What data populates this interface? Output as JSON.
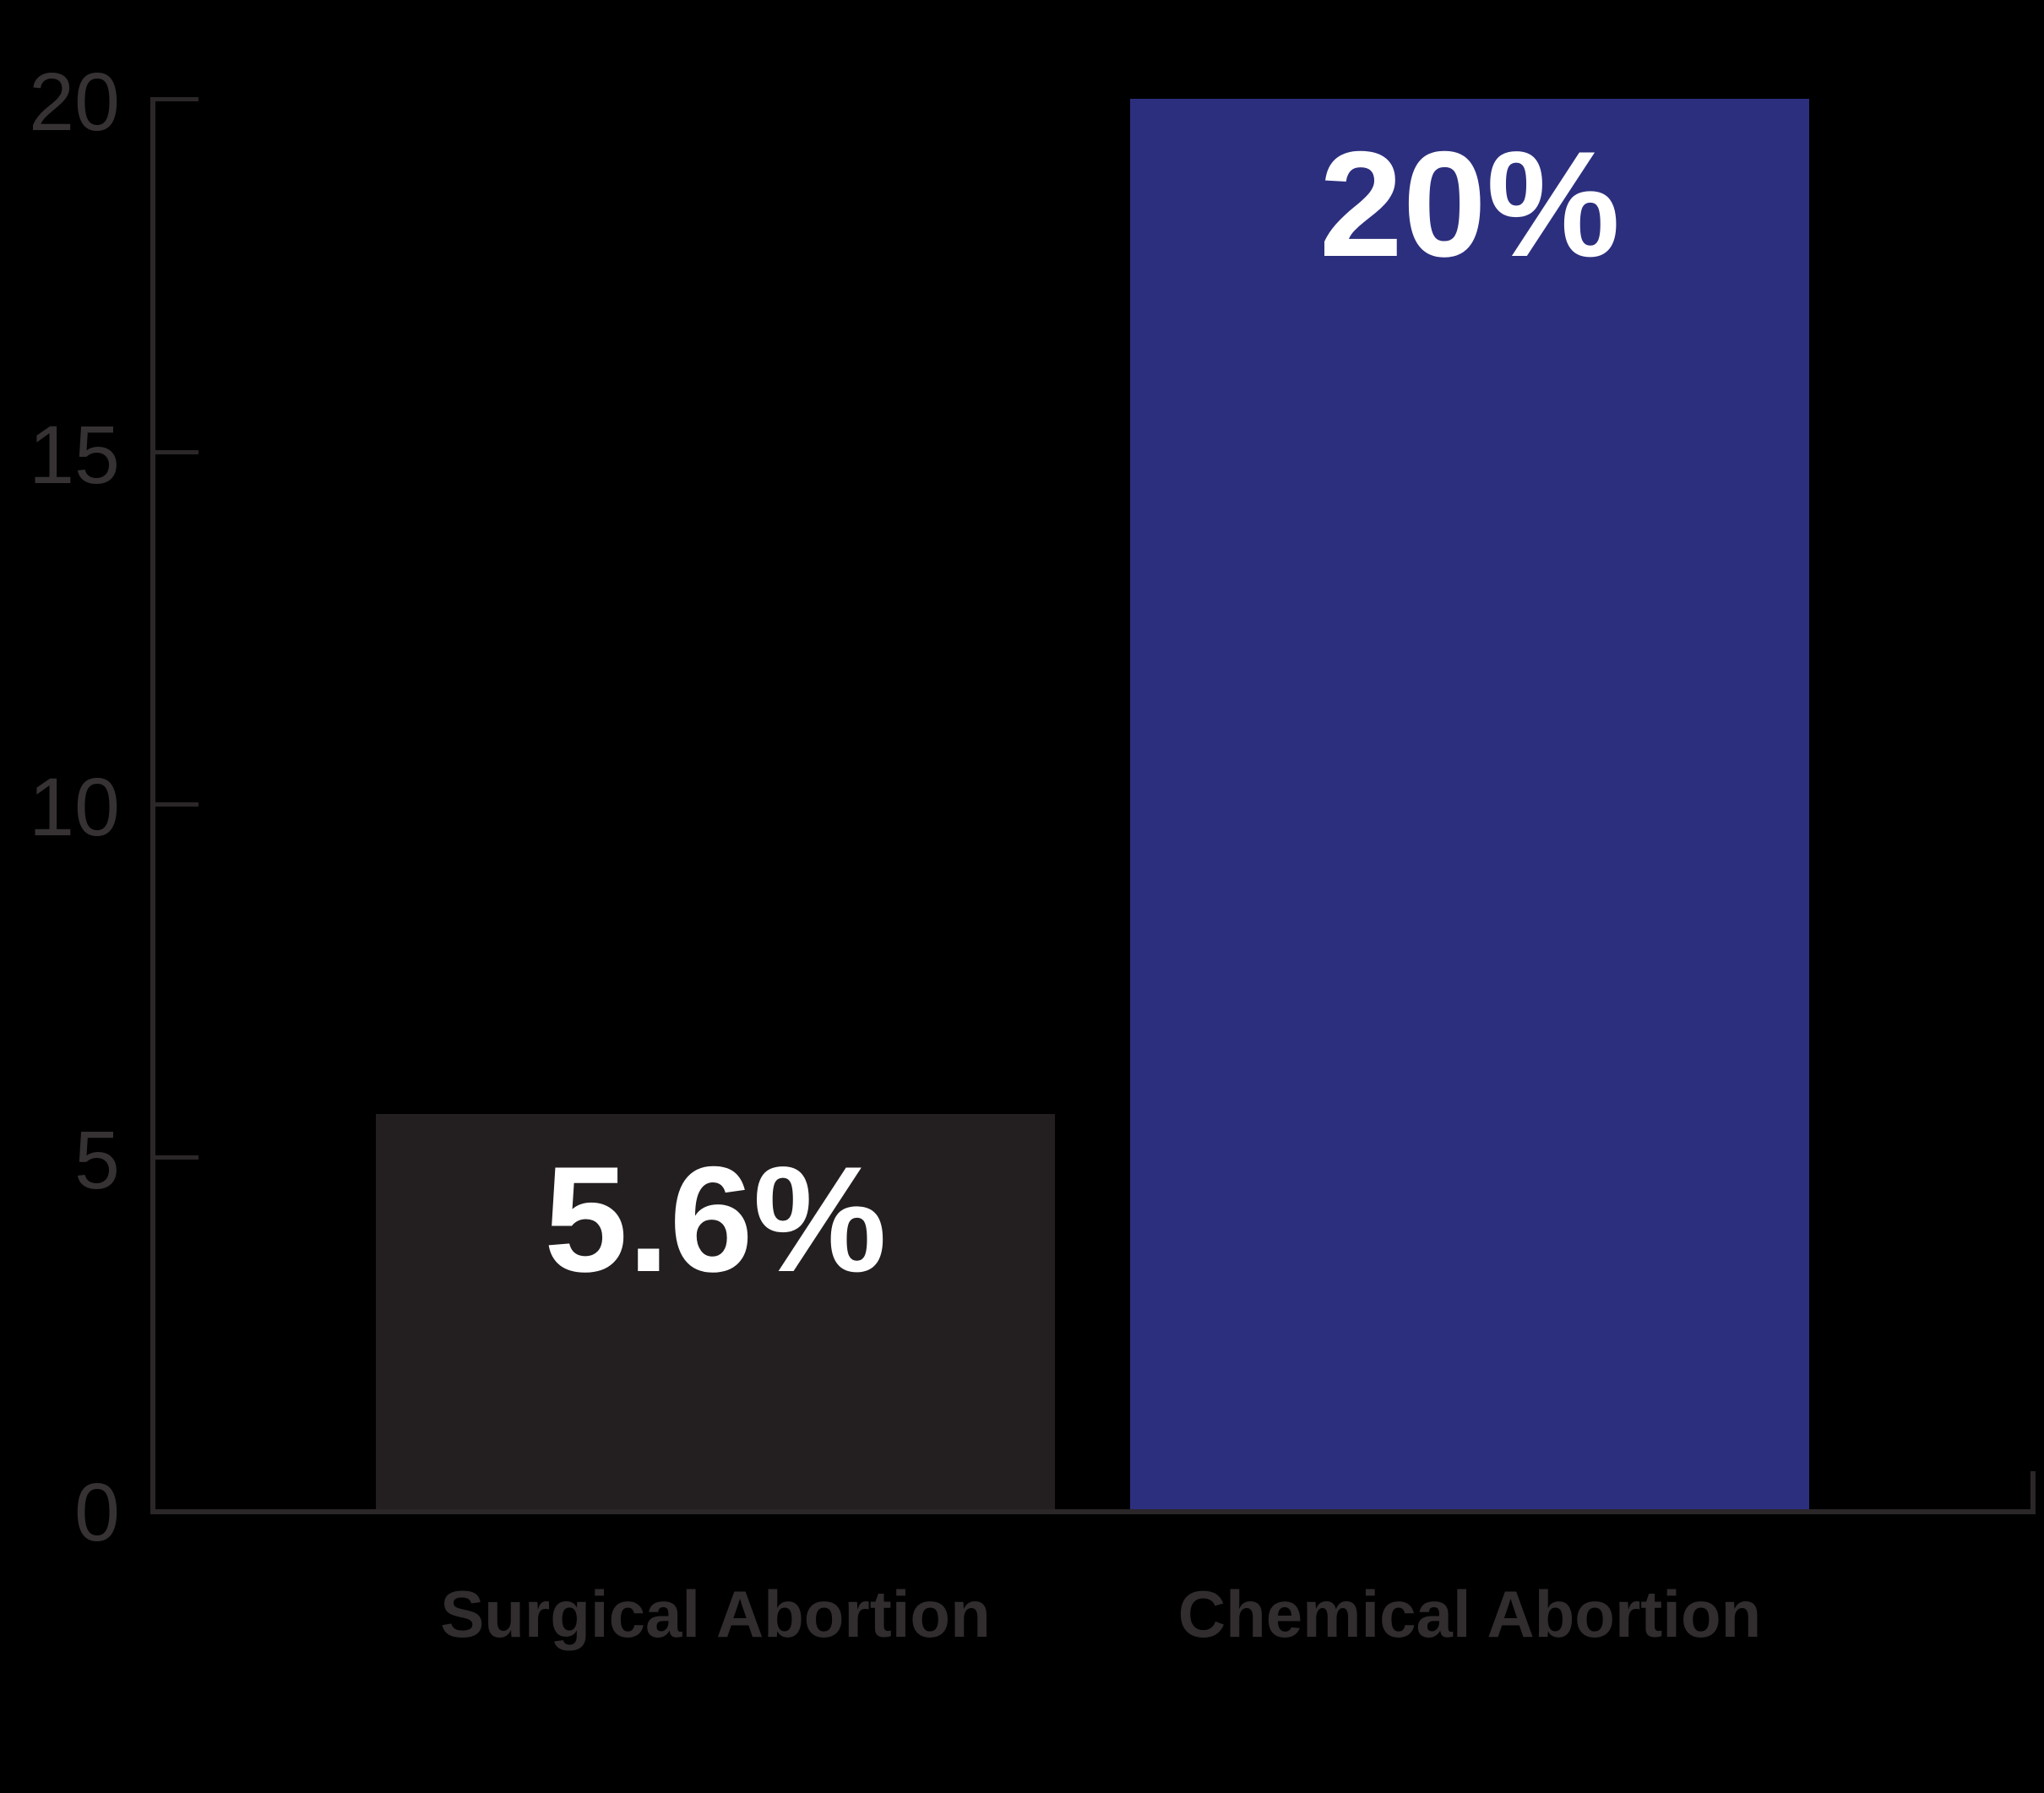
{
  "chart_data": {
    "type": "bar",
    "title": "",
    "xlabel": "",
    "ylabel": "",
    "categories": [
      "Surgical Abortion",
      "Chemical Abortion"
    ],
    "values": [
      5.6,
      20
    ],
    "value_labels": [
      "5.6%",
      "20%"
    ],
    "yticks": [
      0,
      5,
      10,
      15,
      20
    ],
    "ylim": [
      0,
      20
    ],
    "grid": "off",
    "legend": "none",
    "bar_colors": [
      "#231f20",
      "#2c2f7e"
    ]
  },
  "colors": {
    "background": "#000000",
    "axis_line": "#2b2728",
    "tick_label": "#363233",
    "category_label": "#312d2e",
    "value_label": "#ffffff",
    "surgical_bar": "#231f20",
    "chemical_bar": "#2c2f7e"
  }
}
